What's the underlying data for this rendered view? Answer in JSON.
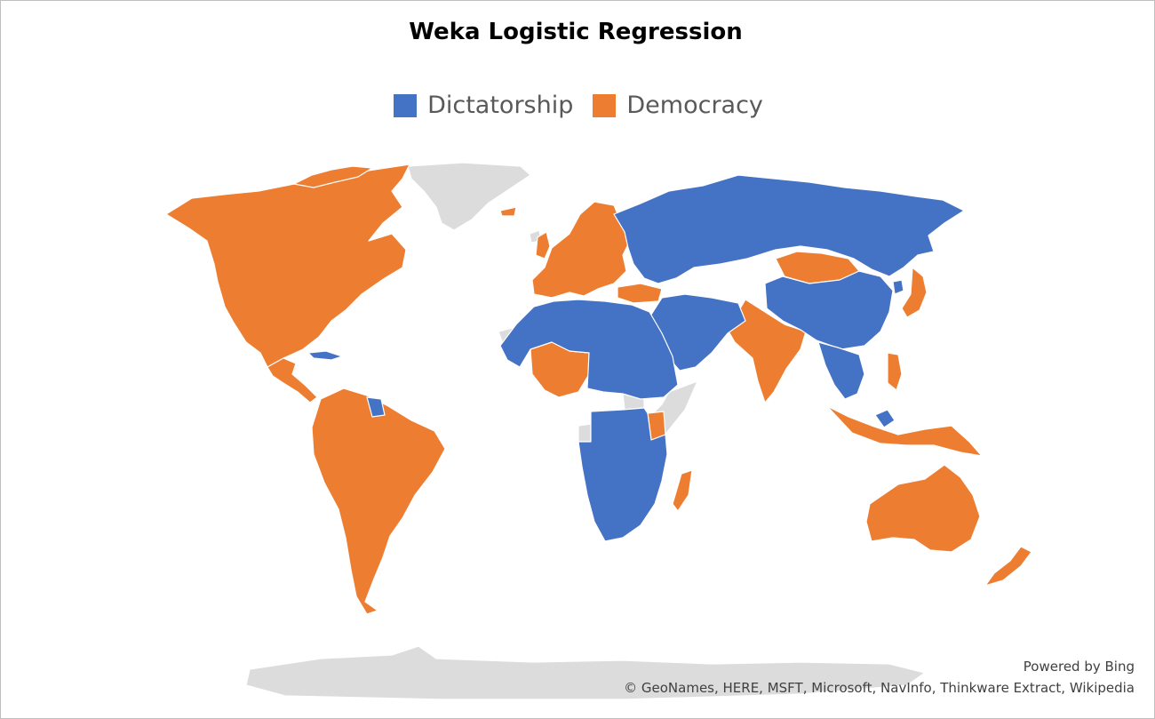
{
  "title": "Weka Logistic Regression",
  "legend": {
    "items": [
      {
        "label": "Dictatorship",
        "color": "#4472c4"
      },
      {
        "label": "Democracy",
        "color": "#ed7d31"
      }
    ]
  },
  "map": {
    "no_data_color": "#dcdcdc",
    "border_color": "#ffffff"
  },
  "credits": {
    "powered_by": "Powered by Bing",
    "copyright": "© GeoNames, HERE, MSFT, Microsoft, NavInfo, Thinkware Extract, Wikipedia"
  }
}
